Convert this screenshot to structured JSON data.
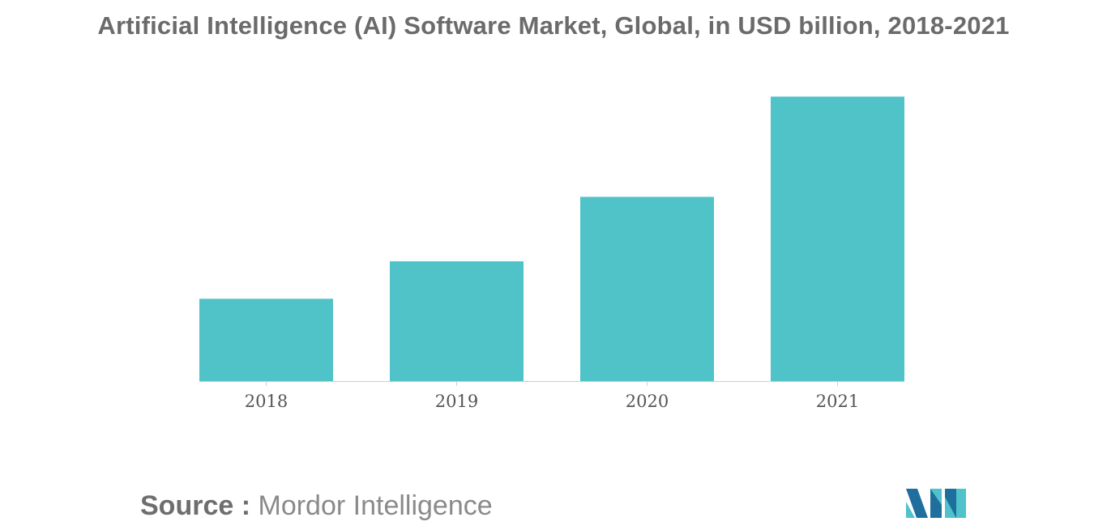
{
  "source": {
    "label": "Source :",
    "value": "Mordor Intelligence"
  },
  "logo": {
    "icon": "mordor-intelligence-logo"
  },
  "colors": {
    "bar": "#50c3c9",
    "title": "#6b6b6b",
    "tick": "#555555",
    "axis": "#cfcfcf",
    "logo_dark": "#1f6f9e",
    "logo_light": "#4fc2cb"
  },
  "chart_data": {
    "type": "bar",
    "title": "Artificial Intelligence (AI) Software Market, Global, in USD billion, 2018-2021",
    "categories": [
      "2018",
      "2019",
      "2020",
      "2021"
    ],
    "values": [
      10.1,
      14.7,
      22.6,
      34.9
    ],
    "xlabel": "",
    "ylabel": "",
    "ylim": [
      0,
      40
    ],
    "grid": false,
    "legend": "none"
  }
}
